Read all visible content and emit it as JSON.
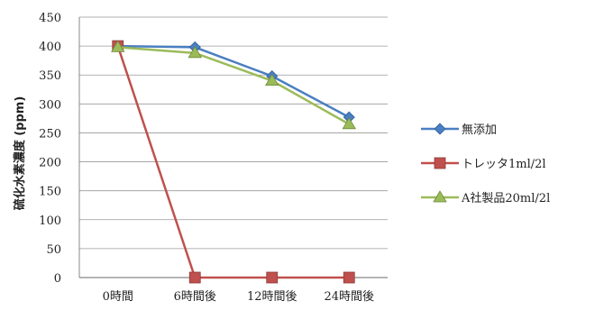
{
  "chart_data": {
    "type": "line",
    "title": "",
    "xlabel": "",
    "ylabel": "硫化水素濃度 (ppm)",
    "categories": [
      "0時間",
      "6時間後",
      "12時間後",
      "24時間後"
    ],
    "ylim": [
      0,
      450
    ],
    "yticks": [
      0,
      50,
      100,
      150,
      200,
      250,
      300,
      350,
      400,
      450
    ],
    "grid": true,
    "legend_position": "right",
    "series": [
      {
        "name": "無添加",
        "values": [
          400,
          398,
          348,
          277
        ],
        "color": "#4a7fc1",
        "marker": "diamond"
      },
      {
        "name": "トレッタ1ml/2l",
        "values": [
          400,
          0,
          0,
          0
        ],
        "color": "#c0504d",
        "marker": "square"
      },
      {
        "name": "A社製品20ml/2l",
        "values": [
          398,
          388,
          340,
          265
        ],
        "color": "#9bbb59",
        "marker": "triangle"
      }
    ]
  }
}
